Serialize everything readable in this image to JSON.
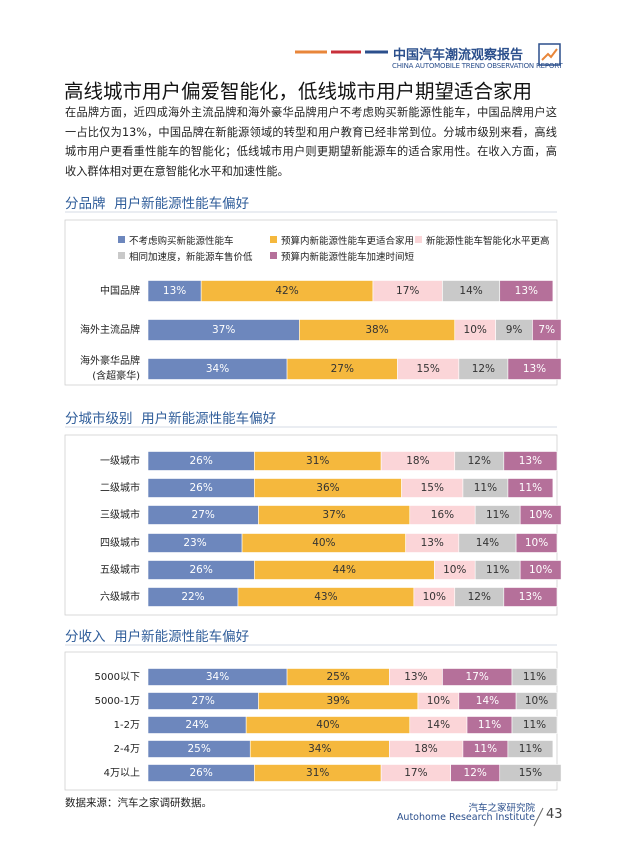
{
  "header": {
    "title": "中国汽车潮流观察报告",
    "subtitle": "CHINA AUTOMOBILE TREND OBSERVATION REPORT"
  },
  "title": "高线城市用户偏爱智能化，低线城市用户期望适合家用",
  "paragraph": "在品牌方面，近四成海外主流品牌和海外豪华品牌用户不考虑购买新能源性能车，中国品牌用户这一占比仅为13%，中国品牌在新能源领域的转型和用户教育已经非常到位。分城市级别来看，高线城市用户更看重性能车的智能化；低线城市用户则更期望新能源车的适合家用性。在收入方面，高收入群体相对更在意智能化水平和加速性能。",
  "chart_data": [
    {
      "type": "bar",
      "orientation": "horizontal",
      "stacked": true,
      "title": "分品牌  用户新能源性能车偏好",
      "categories": [
        "中国品牌",
        "海外主流品牌",
        "海外豪华品牌\n(含超豪华)"
      ],
      "xlim": [
        0,
        100
      ],
      "series": [
        {
          "name": "不考虑购买新能源性能车",
          "color": "#6d87bd",
          "values": [
            13,
            37,
            34
          ],
          "value_labels": [
            "13%",
            "37%",
            "34%"
          ]
        },
        {
          "name": "预算内新能源性能车更适合家用",
          "color": "#f5b83d",
          "values": [
            42,
            38,
            27
          ],
          "value_labels": [
            "42%",
            "38%",
            "27%"
          ]
        },
        {
          "name": "新能源性能车智能化水平更高",
          "color": "#fbd5d8",
          "values": [
            17,
            10,
            15
          ],
          "value_labels": [
            "17%",
            "10%",
            "15%"
          ]
        },
        {
          "name": "相同加速度，新能源车售价低",
          "color": "#c9c9c9",
          "values": [
            14,
            9,
            12
          ],
          "value_labels": [
            "14%",
            "9%",
            "12%"
          ]
        },
        {
          "name": "预算内新能源性能车加速时间短",
          "color": "#b5709a",
          "values": [
            13,
            7,
            13
          ],
          "value_labels": [
            "13%",
            "7%",
            "13%"
          ]
        }
      ]
    },
    {
      "type": "bar",
      "orientation": "horizontal",
      "stacked": true,
      "title": "分城市级别  用户新能源性能车偏好",
      "categories": [
        "一级城市",
        "二级城市",
        "三级城市",
        "四级城市",
        "五级城市",
        "六级城市"
      ],
      "xlim": [
        0,
        100
      ],
      "series": [
        {
          "color": "#6d87bd",
          "values": [
            26,
            26,
            27,
            23,
            26,
            22
          ],
          "value_labels": [
            "26%",
            "26%",
            "27%",
            "23%",
            "26%",
            "22%"
          ]
        },
        {
          "color": "#f5b83d",
          "values": [
            31,
            36,
            37,
            40,
            44,
            43
          ],
          "value_labels": [
            "31%",
            "36%",
            "37%",
            "40%",
            "44%",
            "43%"
          ]
        },
        {
          "color": "#fbd5d8",
          "values": [
            18,
            15,
            16,
            13,
            10,
            10
          ],
          "value_labels": [
            "18%",
            "15%",
            "16%",
            "13%",
            "10%",
            "10%"
          ]
        },
        {
          "color": "#c9c9c9",
          "values": [
            12,
            11,
            11,
            14,
            11,
            12
          ],
          "value_labels": [
            "12%",
            "11%",
            "11%",
            "14%",
            "11%",
            "12%"
          ]
        },
        {
          "color": "#b5709a",
          "values": [
            13,
            11,
            10,
            10,
            10,
            13
          ],
          "value_labels": [
            "13%",
            "11%",
            "10%",
            "10%",
            "10%",
            "13%"
          ]
        }
      ]
    },
    {
      "type": "bar",
      "orientation": "horizontal",
      "stacked": true,
      "title": "分收入  用户新能源性能车偏好",
      "categories": [
        "5000以下",
        "5000-1万",
        "1-2万",
        "2-4万",
        "4万以上"
      ],
      "xlim": [
        0,
        100
      ],
      "series": [
        {
          "color": "#6d87bd",
          "values": [
            34,
            27,
            24,
            25,
            26
          ],
          "value_labels": [
            "34%",
            "27%",
            "24%",
            "25%",
            "26%"
          ]
        },
        {
          "color": "#f5b83d",
          "values": [
            25,
            39,
            40,
            34,
            31
          ],
          "value_labels": [
            "25%",
            "39%",
            "40%",
            "34%",
            "31%"
          ]
        },
        {
          "color": "#fbd5d8",
          "values": [
            13,
            10,
            14,
            18,
            17
          ],
          "value_labels": [
            "13%",
            "10%",
            "14%",
            "18%",
            "17%"
          ]
        },
        {
          "color": "#b5709a",
          "values": [
            17,
            14,
            11,
            11,
            12
          ],
          "value_labels": [
            "17%",
            "14%",
            "11%",
            "11%",
            "12%"
          ]
        },
        {
          "color": "#c9c9c9",
          "values": [
            11,
            10,
            11,
            11,
            15
          ],
          "value_labels": [
            "11%",
            "10%",
            "11%",
            "11%",
            "15%"
          ]
        }
      ]
    }
  ],
  "source": "数据来源：汽车之家调研数据。",
  "footer": {
    "org": "汽车之家研究院",
    "org_en": "Autohome Research Institute",
    "page": 43
  }
}
